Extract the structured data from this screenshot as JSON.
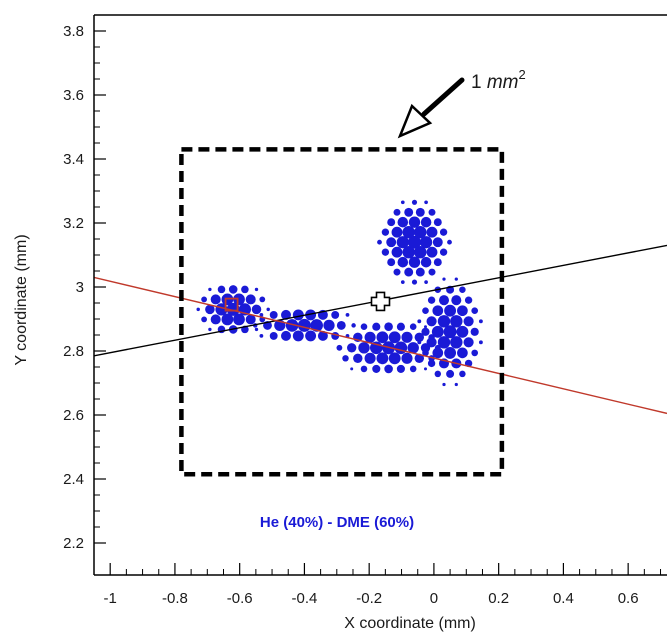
{
  "chart_data": {
    "type": "scatter",
    "title": "",
    "xlabel": "X coordinate (mm)",
    "ylabel": "Y coordinate (mm)",
    "xlim": [
      -1.05,
      0.72
    ],
    "ylim": [
      2.1,
      3.85
    ],
    "xticks": [
      -1,
      -0.8,
      -0.6,
      -0.4,
      -0.2,
      0,
      0.2,
      0.4,
      0.6
    ],
    "xtick_labels": [
      "-1",
      "-0.8",
      "-0.6",
      "-0.4",
      "-0.2",
      "0",
      "0.2",
      "0.4",
      "0.6"
    ],
    "yticks": [
      2.2,
      2.4,
      2.6,
      2.8,
      3.0,
      3.2,
      3.4,
      3.6,
      3.8
    ],
    "ytick_labels": [
      "2.2",
      "2.4",
      "2.6",
      "2.8",
      "3",
      "3.2",
      "3.4",
      "3.6",
      "3.8"
    ],
    "grid": false,
    "annotation": {
      "text_main": "1 ",
      "text_unit": "mm",
      "text_exp": "2"
    },
    "legend": {
      "label": "He (40%) - DME (60%)",
      "color": "#1a1ad6"
    },
    "colors": {
      "points": "#1a1ad6",
      "black_line": "#000000",
      "red_line": "#c0392b",
      "red_marker": "#c0392b",
      "box": "#000000"
    },
    "box": {
      "x": [
        -0.78,
        0.21
      ],
      "y": [
        2.415,
        3.43
      ]
    },
    "lines": [
      {
        "name": "",
        "color": "#000000",
        "x": [
          -1.05,
          0.72
        ],
        "y": [
          2.785,
          3.13
        ]
      },
      {
        "name": "",
        "color": "#c0392b",
        "x": [
          -1.05,
          0.72
        ],
        "y": [
          3.03,
          2.605
        ]
      }
    ],
    "markers": [
      {
        "shape": "cross",
        "color": "#000000",
        "x": -0.165,
        "y": 2.955
      },
      {
        "shape": "square",
        "color": "#c0392b",
        "x": -0.625,
        "y": 2.945
      }
    ],
    "clusters": [
      {
        "cx": -0.06,
        "cy": 3.14,
        "rx": 0.115,
        "ry": 0.135,
        "spacing": 0.036,
        "wave": 0.0
      },
      {
        "cx": -0.62,
        "cy": 2.93,
        "rx": 0.11,
        "ry": 0.085,
        "spacing": 0.036,
        "wave": 0.0
      },
      {
        "cx": -0.4,
        "cy": 2.88,
        "rx": 0.16,
        "ry": 0.065,
        "spacing": 0.038,
        "wave": 0.04
      },
      {
        "cx": -0.14,
        "cy": 2.81,
        "rx": 0.17,
        "ry": 0.09,
        "spacing": 0.038,
        "wave": 0.0
      },
      {
        "cx": 0.05,
        "cy": 2.86,
        "rx": 0.1,
        "ry": 0.17,
        "spacing": 0.038,
        "wave": 0.0
      }
    ]
  }
}
